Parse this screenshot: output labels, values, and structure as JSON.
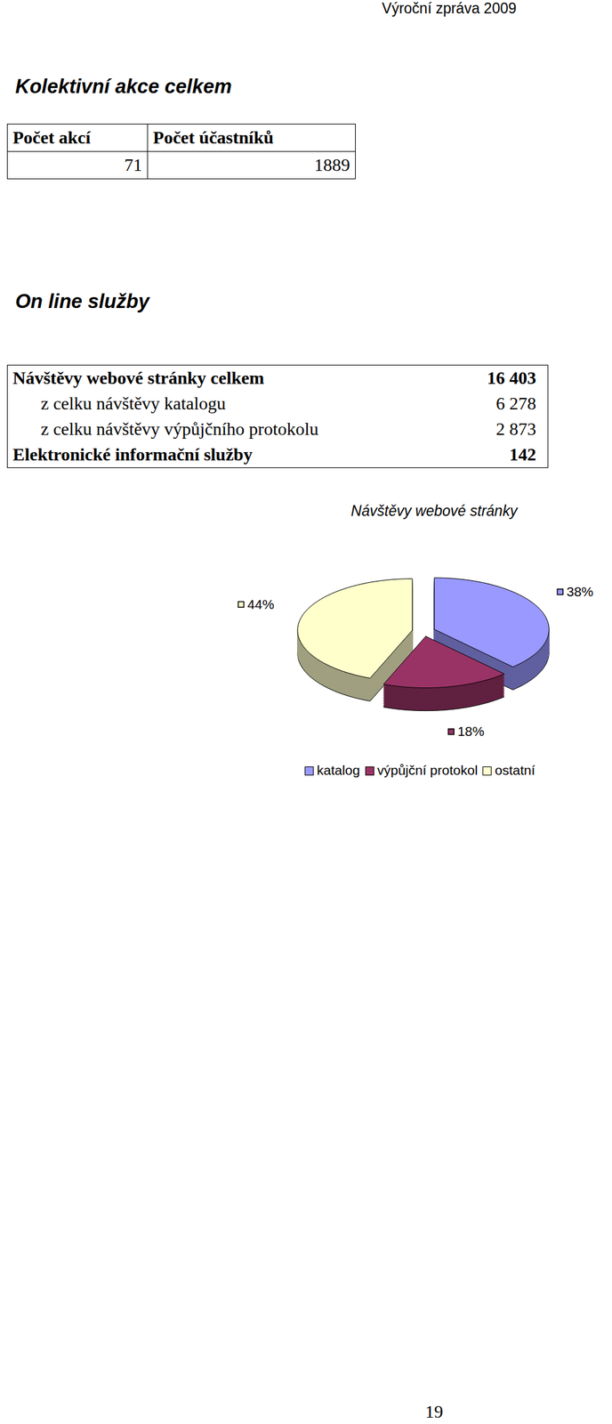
{
  "header": "Výroční zpráva 2009",
  "sections": [
    {
      "title": "Kolektivní akce celkem",
      "table": {
        "columns": [
          "Počet akcí",
          "Počet účastníků"
        ],
        "rows": [
          [
            "71",
            "1889"
          ]
        ]
      }
    },
    {
      "title": "On line služby",
      "table": {
        "rows": [
          {
            "label": "Návštěvy webové stránky celkem",
            "value": "16 403",
            "style": "bold"
          },
          {
            "label": "z celku návštěvy katalogu",
            "value": "6 278",
            "style": "indent"
          },
          {
            "label": "z celku návštěvy výpůjčního protokolu",
            "value": "2 873",
            "style": "indent"
          },
          {
            "label": "Elektronické informační služby",
            "value": "142",
            "style": "bold"
          }
        ]
      }
    }
  ],
  "chart_data": {
    "type": "pie",
    "title": "Návštěvy webové stránky",
    "categories": [
      "katalog",
      "výpůjční protokol",
      "ostatní"
    ],
    "values": [
      38,
      18,
      44
    ],
    "value_labels": [
      "38%",
      "18%",
      "44%"
    ],
    "colors": [
      "#9999ff",
      "#993366",
      "#ffffcc"
    ],
    "data_labels": true,
    "legend": "bottom"
  },
  "page_number": "19"
}
